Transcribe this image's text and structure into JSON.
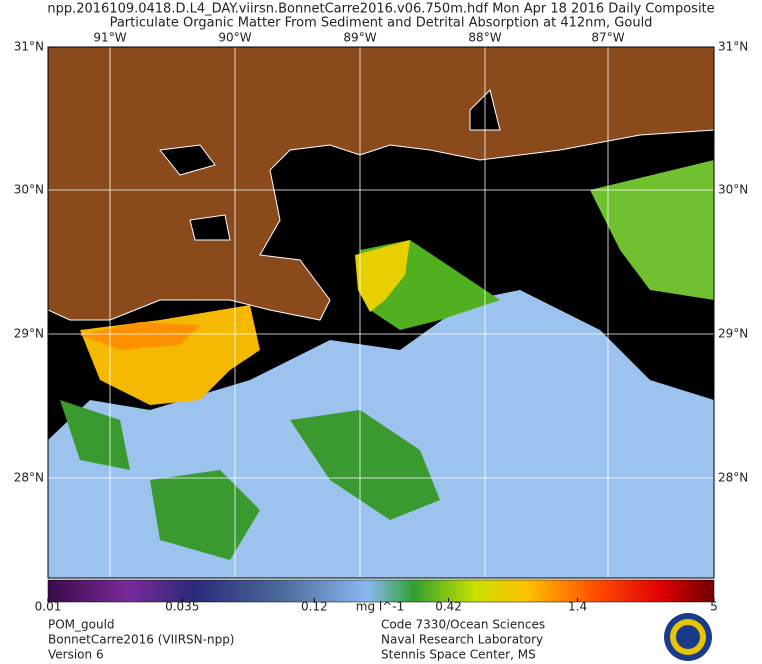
{
  "header": {
    "line1": "npp.2016109.0418.D.L4_DAY.viirsn.BonnetCarre2016.v06.750m.hdf    Mon Apr 18 2016 Daily Composite",
    "line2": "Particulate Organic Matter From Sediment and Detrital Absorption at 412nm, Gould"
  },
  "map": {
    "lat_labels": [
      "31°N",
      "30°N",
      "29°N",
      "28°N"
    ],
    "lon_labels": [
      "91°W",
      "90°W",
      "89°W",
      "88°W",
      "87°W"
    ]
  },
  "colorbar": {
    "scale": "log",
    "lim": [
      0.01,
      5
    ],
    "ticks": [
      0.01,
      0.035,
      0.12,
      0.42,
      1.4,
      5
    ],
    "units": "mg l^-1"
  },
  "footer": {
    "left": [
      "POM_gould",
      "BonnetCarre2016 (VIIRSN-npp)",
      "Version 6"
    ],
    "right": [
      "Code 7330/Ocean Sciences",
      "Naval Research Laboratory",
      "Stennis Space Center, MS"
    ]
  }
}
